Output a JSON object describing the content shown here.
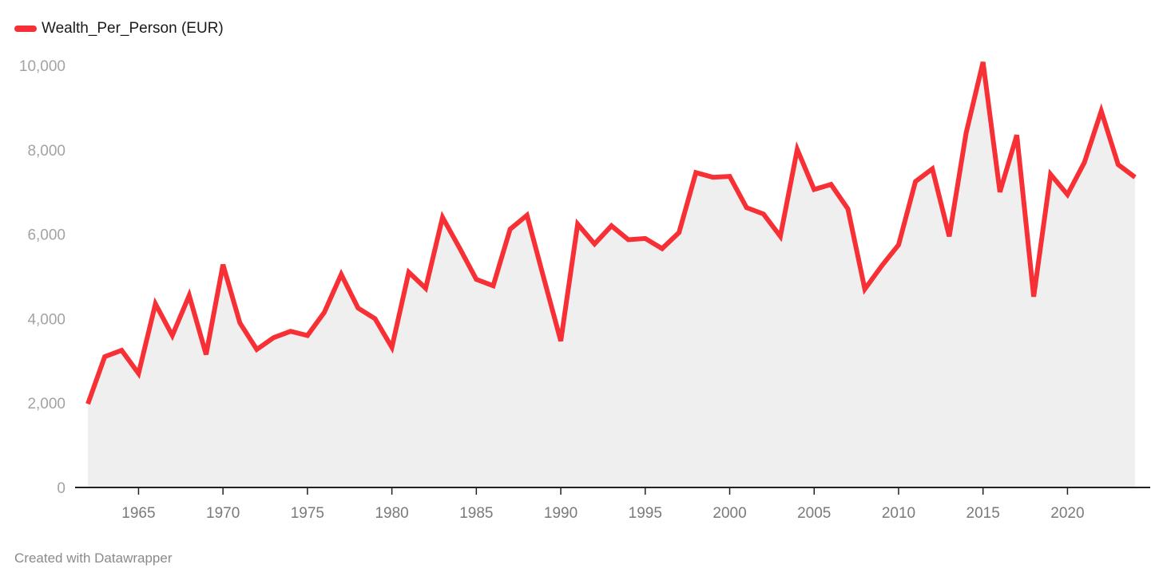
{
  "colors": {
    "line": "#f73036",
    "area": "#efeff0",
    "axis": "#222222",
    "tick_y": "#a3a3a3",
    "tick_x": "#7a7a7a"
  },
  "legend": {
    "label": "Wealth_Per_Person (EUR)"
  },
  "credit": "Created with Datawrapper",
  "chart_data": {
    "type": "area",
    "title": "",
    "xlabel": "",
    "ylabel": "",
    "ylim": [
      0,
      10000
    ],
    "xlim": [
      1962,
      2024
    ],
    "grid": false,
    "legend_position": "top-left",
    "y_ticks": [
      0,
      2000,
      4000,
      6000,
      8000,
      10000
    ],
    "y_tick_labels": [
      "0",
      "2,000",
      "4,000",
      "6,000",
      "8,000",
      "10,000"
    ],
    "x_ticks": [
      1965,
      1970,
      1975,
      1980,
      1985,
      1990,
      1995,
      2000,
      2005,
      2010,
      2015,
      2020
    ],
    "x_tick_labels": [
      "1965",
      "1970",
      "1975",
      "1980",
      "1985",
      "1990",
      "1995",
      "2000",
      "2005",
      "2010",
      "2015",
      "2020"
    ],
    "series": [
      {
        "name": "Wealth_Per_Person (EUR)",
        "x": [
          1962,
          1963,
          1964,
          1965,
          1966,
          1967,
          1968,
          1969,
          1970,
          1971,
          1972,
          1973,
          1974,
          1975,
          1976,
          1977,
          1978,
          1979,
          1980,
          1981,
          1982,
          1983,
          1984,
          1985,
          1986,
          1987,
          1988,
          1989,
          1990,
          1991,
          1992,
          1993,
          1994,
          1995,
          1996,
          1997,
          1998,
          1999,
          2000,
          2001,
          2002,
          2003,
          2004,
          2005,
          2006,
          2007,
          2008,
          2009,
          2010,
          2011,
          2012,
          2013,
          2014,
          2015,
          2016,
          2017,
          2018,
          2019,
          2020,
          2021,
          2022,
          2023,
          2024
        ],
        "values": [
          1980,
          3100,
          3250,
          2700,
          4350,
          3600,
          4550,
          3150,
          5280,
          3900,
          3270,
          3550,
          3700,
          3600,
          4150,
          5050,
          4250,
          4000,
          3320,
          5100,
          4720,
          6400,
          5680,
          4930,
          4780,
          6120,
          6450,
          4950,
          3470,
          6240,
          5770,
          6200,
          5870,
          5900,
          5660,
          6040,
          7460,
          7350,
          7370,
          6630,
          6480,
          5950,
          8010,
          7060,
          7180,
          6600,
          4700,
          5250,
          5750,
          7250,
          7550,
          5950,
          8400,
          10080,
          7000,
          8350,
          4520,
          7420,
          6940,
          7700,
          8920,
          7650,
          7350
        ]
      }
    ]
  }
}
